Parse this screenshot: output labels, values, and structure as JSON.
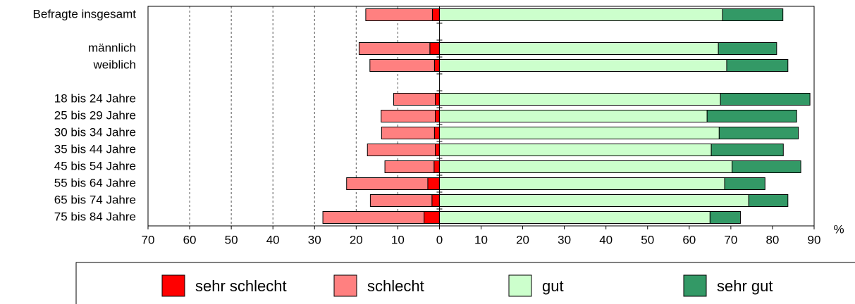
{
  "chart_data": {
    "type": "diverging-stacked-bar",
    "categories": [
      "Befragte insgesamt",
      null,
      "männlich",
      "weiblich",
      null,
      "18 bis 24 Jahre",
      "25 bis 29 Jahre",
      "30 bis 34 Jahre",
      "35 bis 44 Jahre",
      "45 bis 54 Jahre",
      "55 bis 64 Jahre",
      "65 bis 74 Jahre",
      "75 bis 84 Jahre"
    ],
    "series": [
      {
        "name": "sehr schlecht",
        "color": "#ff0000",
        "values": [
          -1.7,
          null,
          -2.3,
          -1.2,
          null,
          -1,
          -1,
          -1.2,
          -1,
          -1.3,
          -2.8,
          -1.8,
          -3.7
        ]
      },
      {
        "name": "schlecht",
        "color": "#ff8080",
        "values": [
          -16,
          null,
          -17,
          -15.5,
          null,
          -10,
          -13,
          -12.7,
          -16.3,
          -11.8,
          -19.5,
          -14.8,
          -24.3
        ]
      },
      {
        "name": "gut",
        "color": "#ccffcc",
        "values": [
          68,
          null,
          67,
          69,
          null,
          67.5,
          64.3,
          67.2,
          65.3,
          70.3,
          68.5,
          74.3,
          65
        ]
      },
      {
        "name": "sehr gut",
        "color": "#339966",
        "values": [
          14.5,
          null,
          14,
          14.7,
          null,
          21.5,
          21.5,
          19,
          17.3,
          16.5,
          9.7,
          9.4,
          7.3
        ]
      }
    ],
    "xlim": [
      -70,
      90
    ],
    "xticks": [
      {
        "value": -70,
        "label": "70"
      },
      {
        "value": -60,
        "label": "60"
      },
      {
        "value": -50,
        "label": "50"
      },
      {
        "value": -40,
        "label": "40"
      },
      {
        "value": -30,
        "label": "30"
      },
      {
        "value": -20,
        "label": "20"
      },
      {
        "value": -10,
        "label": "10"
      },
      0,
      10,
      20,
      30,
      40,
      50,
      60,
      70,
      80,
      90
    ],
    "xlabel": "%",
    "grid": true
  }
}
